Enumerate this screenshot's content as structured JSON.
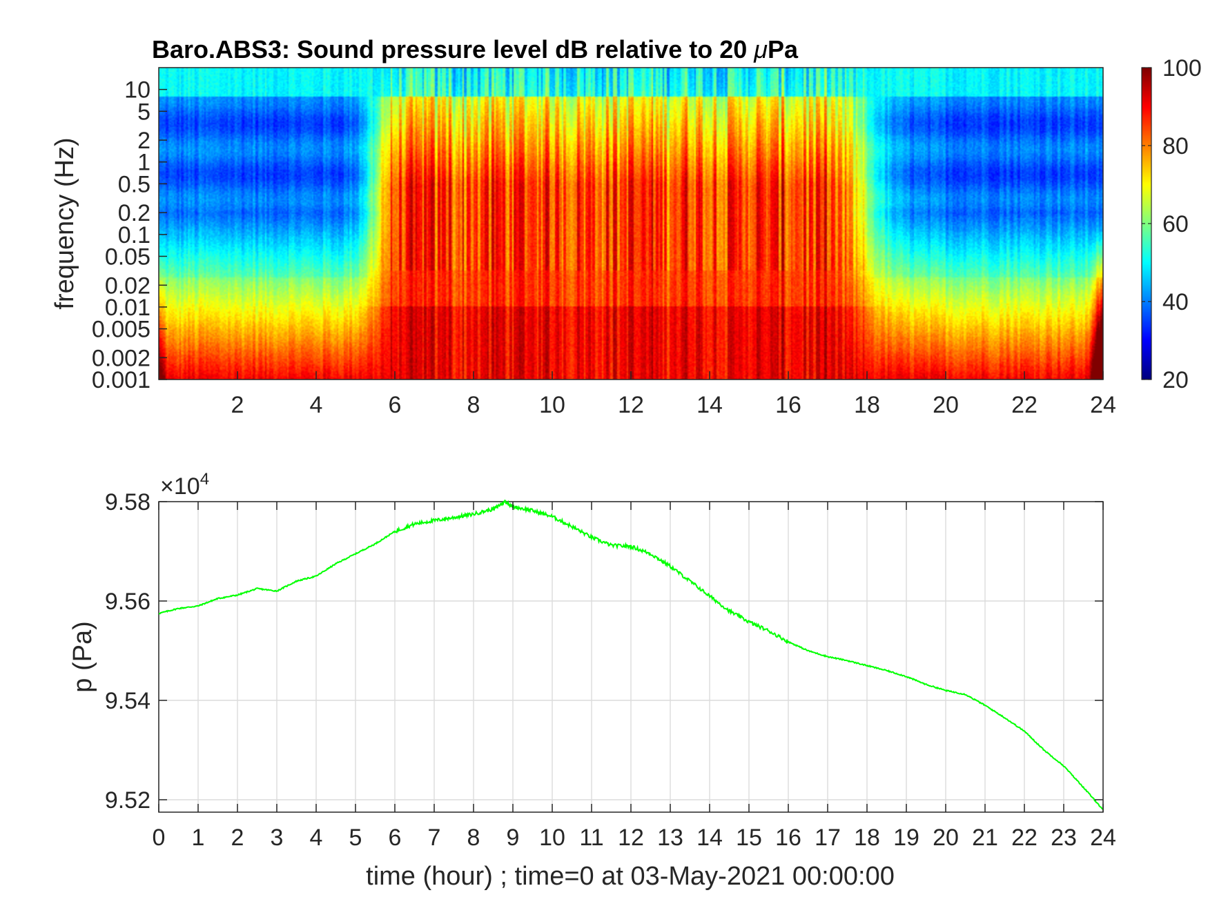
{
  "chart_data": [
    {
      "type": "heatmap",
      "title": "Baro.ABS3: Sound pressure level dB relative to 20 μPa",
      "title_prefix": "Baro.ABS3: Sound pressure level dB relative to 20 ",
      "title_mu": "μ",
      "title_unit": "Pa",
      "xlabel": "",
      "ylabel": "frequency (Hz)",
      "x_range": [
        0,
        24
      ],
      "y_scale": "log",
      "y_range": [
        0.001,
        20
      ],
      "x_ticks": [
        "2",
        "4",
        "6",
        "8",
        "10",
        "12",
        "14",
        "16",
        "18",
        "20",
        "22",
        "24"
      ],
      "y_ticks": [
        "10",
        "5",
        "2",
        "1",
        "0.5",
        "0.2",
        "0.1",
        "0.05",
        "0.02",
        "0.01",
        "0.005",
        "0.002",
        "0.001"
      ],
      "colormap": "jet",
      "colorbar": {
        "range": [
          20,
          100
        ],
        "ticks": [
          "100",
          "80",
          "60",
          "40",
          "20"
        ]
      },
      "description_levels": {
        "quiet_hours": [
          [
            0,
            5.5
          ],
          [
            18,
            24
          ]
        ],
        "active_hours": [
          5.5,
          18
        ],
        "high_freq_level_db": 50,
        "quiet_mid_band_level_db": 38,
        "active_low_freq_level_db": 90
      }
    },
    {
      "type": "line",
      "title": "",
      "xlabel": "time (hour) ; time=0 at 03-May-2021 00:00:00",
      "ylabel": "p (Pa)",
      "y_exponent": "×10",
      "y_exponent_power": "4",
      "xlim": [
        0,
        24
      ],
      "ylim": [
        95175,
        95800
      ],
      "grid": true,
      "x_ticks": [
        "0",
        "1",
        "2",
        "3",
        "4",
        "5",
        "6",
        "7",
        "8",
        "9",
        "10",
        "11",
        "12",
        "13",
        "14",
        "15",
        "16",
        "17",
        "18",
        "19",
        "20",
        "21",
        "22",
        "23",
        "24"
      ],
      "y_ticks": [
        "9.58",
        "9.56",
        "9.54",
        "9.52"
      ],
      "series": [
        {
          "color": "#00ff00",
          "x": [
            0,
            0.5,
            1,
            1.5,
            2,
            2.5,
            3,
            3.5,
            4,
            4.5,
            5,
            5.5,
            6,
            6.5,
            7,
            7.5,
            8,
            8.5,
            8.8,
            9,
            9.5,
            10,
            10.5,
            11,
            11.5,
            12,
            12.5,
            13,
            13.5,
            14,
            14.5,
            15,
            15.5,
            16,
            16.5,
            17,
            17.5,
            18,
            18.5,
            19,
            19.5,
            20,
            20.5,
            21,
            21.5,
            22,
            22.5,
            23,
            23.5,
            24
          ],
          "y": [
            95575,
            95585,
            95590,
            95605,
            95612,
            95625,
            95620,
            95640,
            95650,
            95675,
            95695,
            95715,
            95740,
            95755,
            95762,
            95768,
            95775,
            95785,
            95800,
            95790,
            95782,
            95770,
            95750,
            95728,
            95712,
            95710,
            95695,
            95670,
            95640,
            95610,
            95580,
            95558,
            95540,
            95518,
            95500,
            95488,
            95480,
            95470,
            95460,
            95448,
            95432,
            95420,
            95412,
            95390,
            95365,
            95338,
            95300,
            95268,
            95225,
            95180
          ]
        }
      ]
    }
  ]
}
